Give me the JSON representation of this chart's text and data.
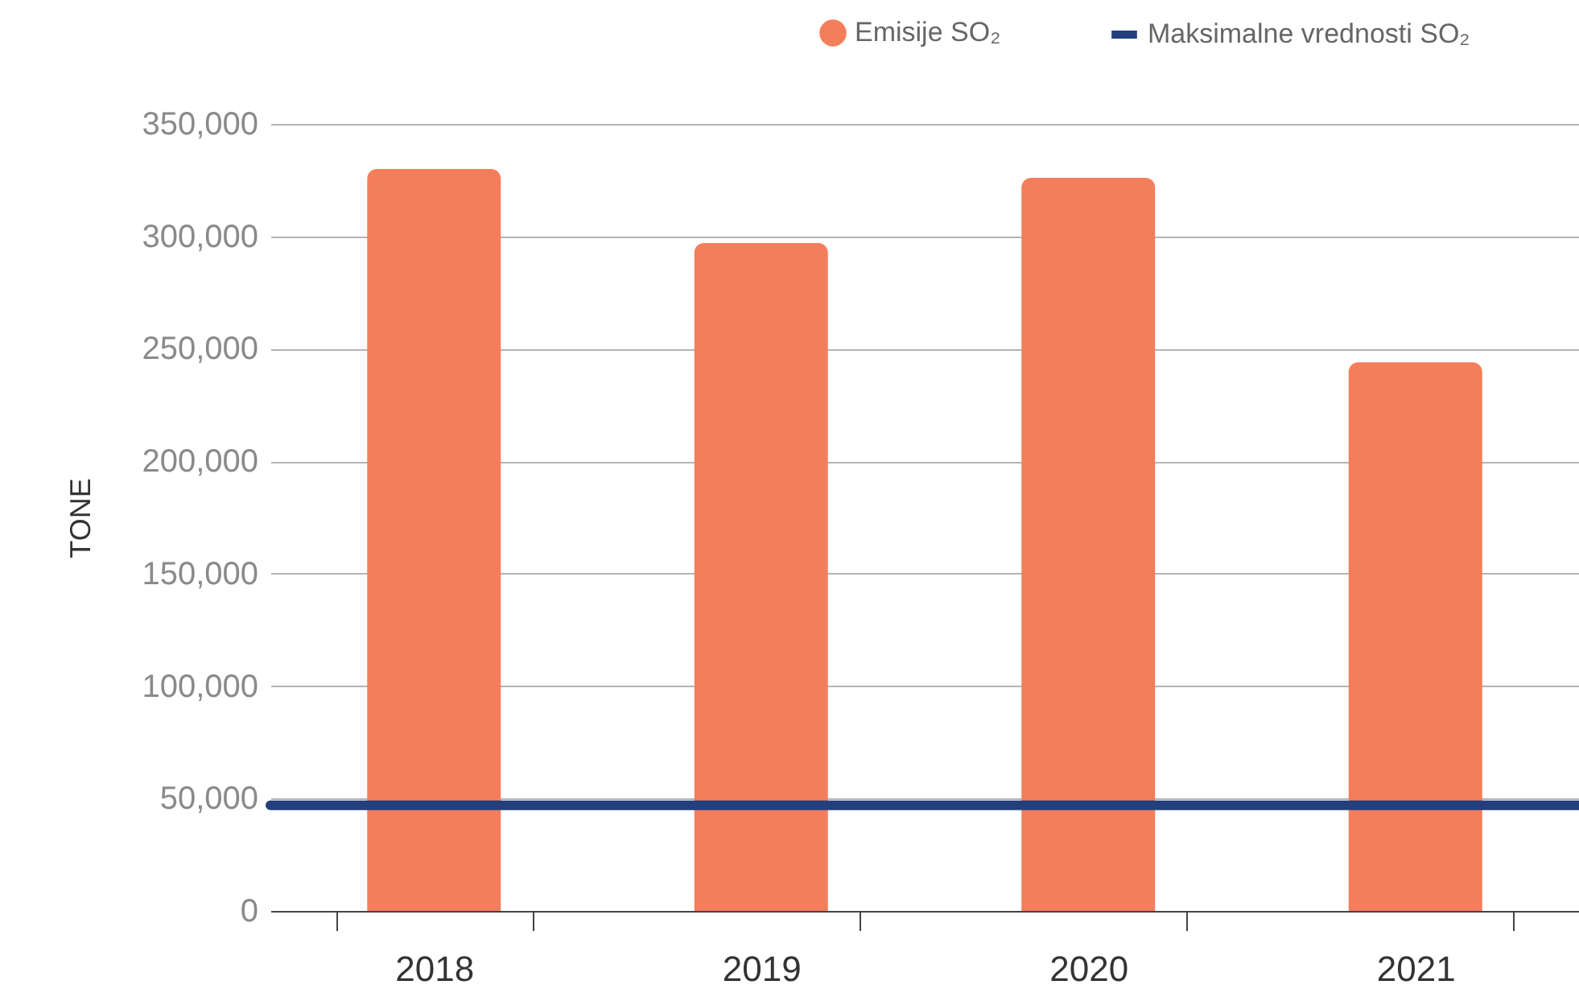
{
  "chart_data": {
    "type": "bar",
    "ylabel": "TONE",
    "categories": [
      "2018",
      "2019",
      "2020",
      "2021"
    ],
    "series": [
      {
        "name": "Emisije SO₂",
        "color": "#f47e5b",
        "values": [
          330000,
          297000,
          326000,
          244000
        ]
      }
    ],
    "ref_lines": [
      {
        "axis": "y",
        "value": 47000,
        "label": "Maksimalne vrednosti SO₂",
        "color": "#243f7c"
      }
    ],
    "ylim": [
      0,
      350000
    ],
    "yticks": [
      0,
      {
        "value": 50000,
        "label": "50,000"
      },
      {
        "value": 100000,
        "label": "100,000"
      },
      {
        "value": 150000,
        "label": "150,000"
      },
      {
        "value": 200000,
        "label": "200,000"
      },
      {
        "value": 250000,
        "label": "250,000"
      },
      {
        "value": 300000,
        "label": "300,000"
      },
      {
        "value": 350000,
        "label": "350,000"
      }
    ],
    "grid": "y",
    "legend": "top right"
  }
}
